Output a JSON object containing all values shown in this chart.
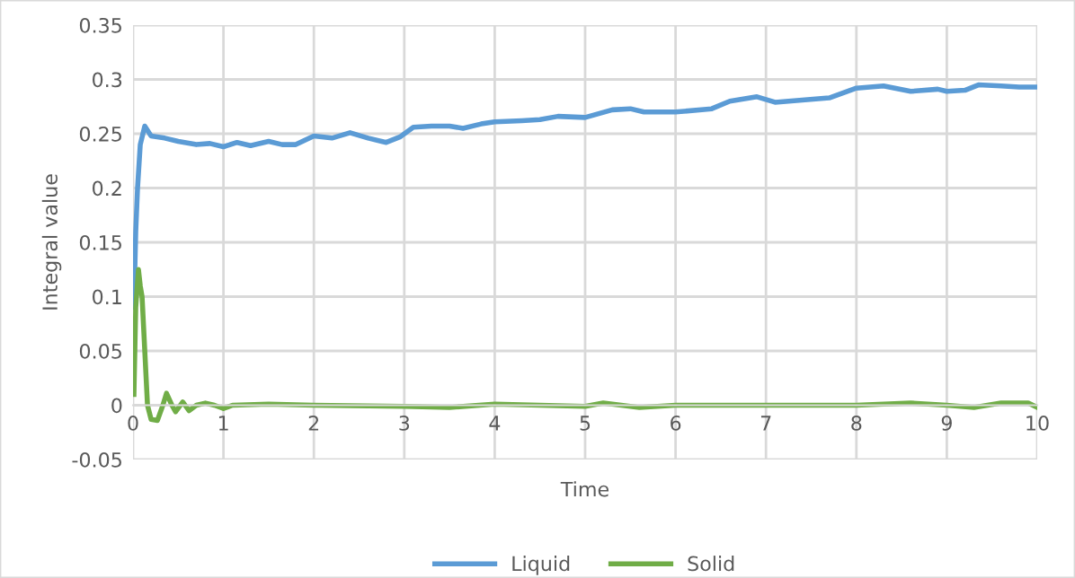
{
  "chart_data": {
    "type": "line",
    "xlabel": "Time",
    "ylabel": "Integral value",
    "xlim": [
      0,
      10
    ],
    "xticks": [
      0,
      1,
      2,
      3,
      4,
      5,
      6,
      7,
      8,
      9,
      10
    ],
    "ylim": [
      -0.05,
      0.35
    ],
    "yticks": [
      -0.05,
      0,
      0.05,
      0.1,
      0.15,
      0.2,
      0.25,
      0.3,
      0.35
    ],
    "grid": true,
    "legend": "bottom",
    "marker": "none",
    "line_style": "solid",
    "series": [
      {
        "name": "Liquid",
        "color": "#5b9bd5",
        "x": [
          0.01,
          0.03,
          0.05,
          0.08,
          0.13,
          0.2,
          0.35,
          0.5,
          0.7,
          0.85,
          1.0,
          1.15,
          1.3,
          1.5,
          1.65,
          1.8,
          2.0,
          2.2,
          2.4,
          2.6,
          2.8,
          2.95,
          3.1,
          3.3,
          3.5,
          3.65,
          3.85,
          4.0,
          4.3,
          4.5,
          4.7,
          5.0,
          5.3,
          5.5,
          5.65,
          6.0,
          6.4,
          6.6,
          6.9,
          7.1,
          7.4,
          7.7,
          8.0,
          8.3,
          8.6,
          8.9,
          9.0,
          9.2,
          9.35,
          9.6,
          9.8,
          10.0
        ],
        "values": [
          0.09,
          0.16,
          0.2,
          0.24,
          0.257,
          0.248,
          0.246,
          0.243,
          0.24,
          0.241,
          0.238,
          0.242,
          0.239,
          0.243,
          0.24,
          0.24,
          0.248,
          0.246,
          0.251,
          0.246,
          0.242,
          0.247,
          0.256,
          0.257,
          0.257,
          0.255,
          0.259,
          0.261,
          0.262,
          0.263,
          0.266,
          0.265,
          0.272,
          0.273,
          0.27,
          0.27,
          0.273,
          0.28,
          0.284,
          0.279,
          0.281,
          0.283,
          0.292,
          0.294,
          0.289,
          0.291,
          0.289,
          0.29,
          0.295,
          0.294,
          0.293,
          0.293
        ]
      },
      {
        "name": "Solid",
        "color": "#70ad47",
        "x": [
          0.01,
          0.03,
          0.06,
          0.08,
          0.1,
          0.13,
          0.16,
          0.2,
          0.27,
          0.33,
          0.37,
          0.43,
          0.47,
          0.55,
          0.62,
          0.7,
          0.8,
          0.9,
          1.0,
          1.1,
          1.5,
          2.0,
          3.0,
          3.5,
          4.0,
          4.5,
          5.0,
          5.2,
          5.6,
          6.0,
          7.0,
          8.0,
          8.6,
          9.0,
          9.3,
          9.6,
          9.9,
          10.0
        ],
        "values": [
          0.01,
          0.09,
          0.125,
          0.11,
          0.1,
          0.05,
          0.0,
          -0.013,
          -0.014,
          0.0,
          0.011,
          0.0,
          -0.006,
          0.003,
          -0.005,
          0.0,
          0.002,
          0.0,
          -0.003,
          0.0,
          0.001,
          0.0,
          -0.001,
          -0.002,
          0.001,
          0.0,
          -0.001,
          0.002,
          -0.002,
          0.0,
          0.0,
          0.0,
          0.002,
          0.0,
          -0.002,
          0.002,
          0.002,
          -0.002
        ]
      }
    ]
  }
}
